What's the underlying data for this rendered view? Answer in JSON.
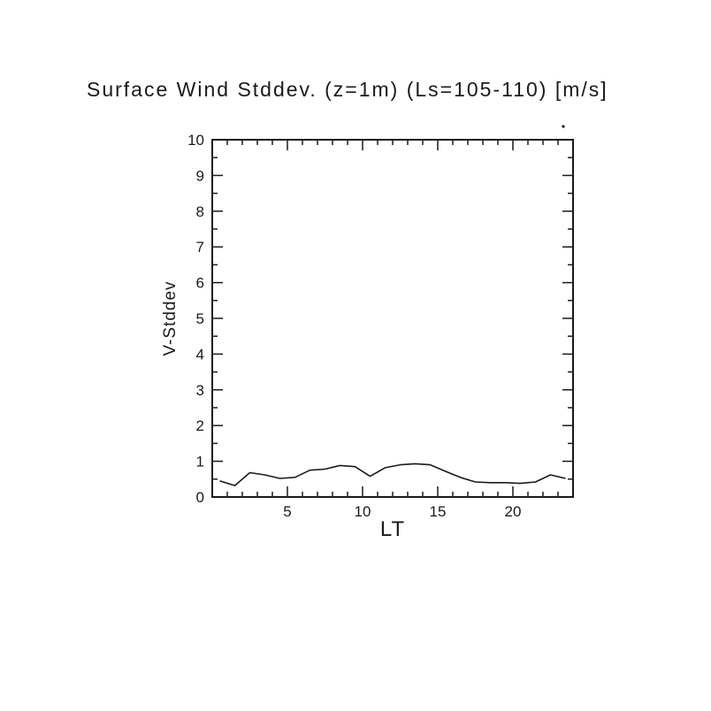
{
  "page": {
    "background": "#ffffff",
    "axis_color": "#1a1a1a"
  },
  "chart_data": {
    "type": "line",
    "title": "Surface Wind Stddev. (z=1m) (Ls=105-110) [m/s]",
    "xlabel": "LT",
    "ylabel": "V-Stddev",
    "xlim": [
      0,
      24
    ],
    "ylim": [
      0,
      10
    ],
    "x_major_ticks": [
      5,
      10,
      15,
      20
    ],
    "x_minor_step": 1,
    "y_major_ticks": [
      0,
      1,
      2,
      3,
      4,
      5,
      6,
      7,
      8,
      9,
      10
    ],
    "y_minor_step": 0.5,
    "grid": false,
    "legend": false,
    "line_color": "#1a1a1a",
    "x": [
      0.5,
      1.5,
      2.5,
      3.5,
      4.5,
      5.5,
      6.5,
      7.5,
      8.5,
      9.5,
      10.5,
      11.5,
      12.5,
      13.5,
      14.5,
      15.5,
      16.5,
      17.5,
      18.5,
      19.5,
      20.5,
      21.5,
      22.5,
      23.5
    ],
    "y": [
      0.45,
      0.32,
      0.68,
      0.62,
      0.52,
      0.55,
      0.75,
      0.78,
      0.88,
      0.85,
      0.58,
      0.82,
      0.9,
      0.93,
      0.9,
      0.72,
      0.55,
      0.42,
      0.4,
      0.4,
      0.38,
      0.42,
      0.62,
      0.52
    ]
  },
  "annotations": {
    "stray_dot": true
  }
}
